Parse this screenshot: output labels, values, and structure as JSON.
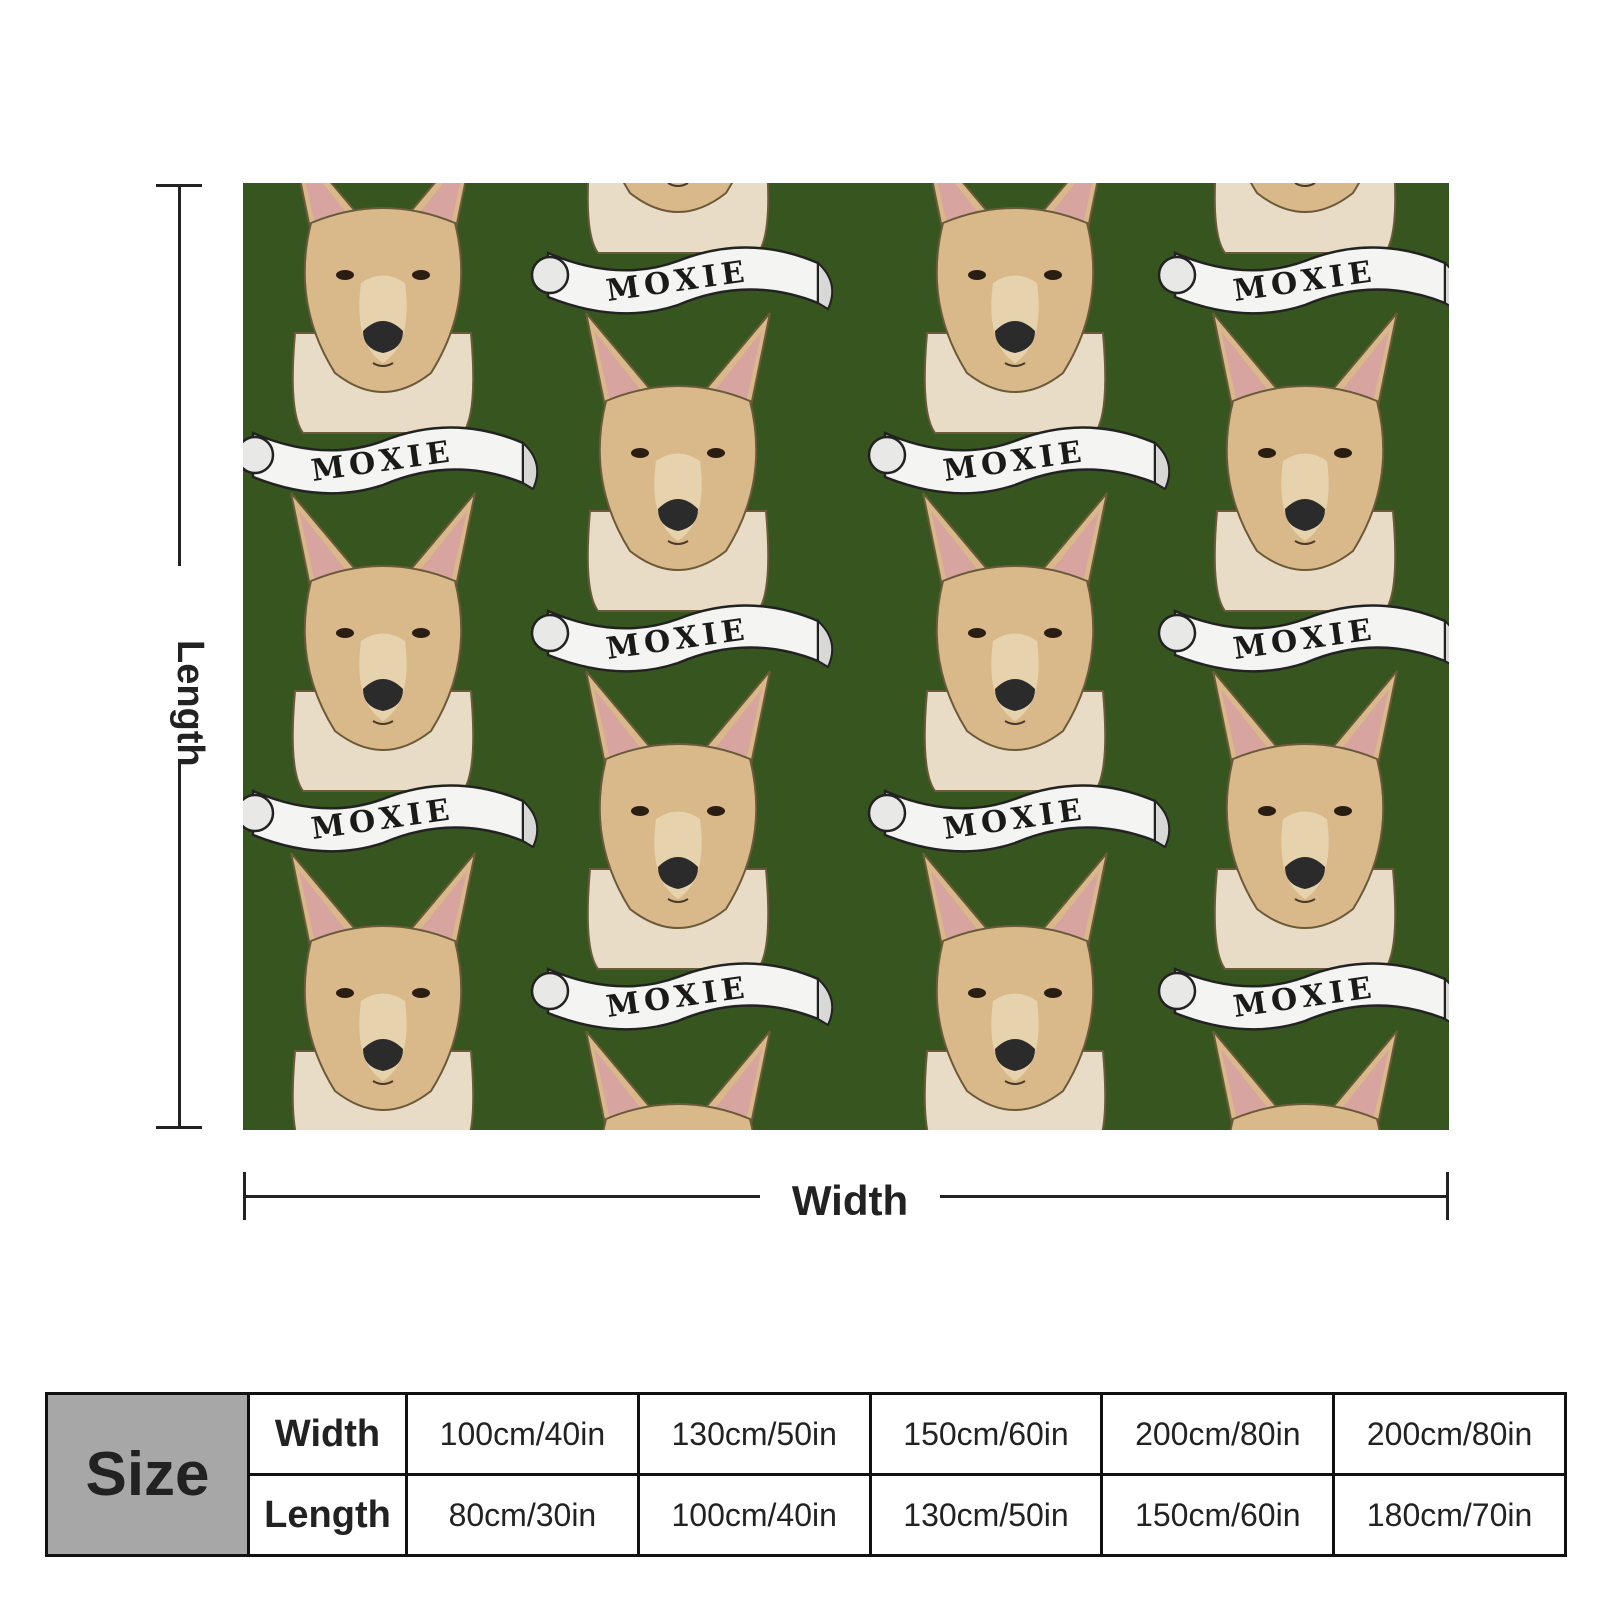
{
  "pattern": {
    "banner_text": "MOXIE",
    "background_color": "#37551f",
    "motif": "bull-terrier-head-with-banner"
  },
  "dimensions": {
    "length_label": "Length",
    "width_label": "Width"
  },
  "size_table": {
    "header": "Size",
    "rows": [
      {
        "label": "Width",
        "values": [
          "100cm/40in",
          "130cm/50in",
          "150cm/60in",
          "200cm/80in",
          "200cm/80in"
        ]
      },
      {
        "label": "Length",
        "values": [
          "80cm/30in",
          "100cm/40in",
          "130cm/50in",
          "150cm/60in",
          "180cm/70in"
        ]
      }
    ]
  }
}
